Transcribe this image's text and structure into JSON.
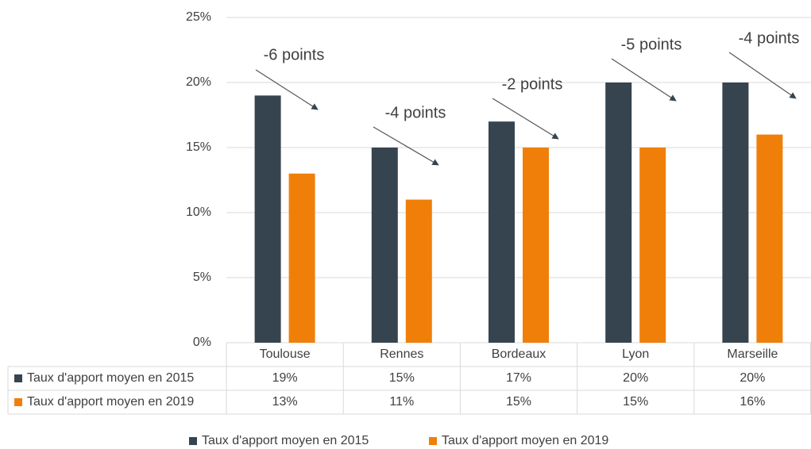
{
  "chart_data": {
    "type": "bar",
    "categories": [
      "Toulouse",
      "Rennes",
      "Bordeaux",
      "Lyon",
      "Marseille"
    ],
    "series": [
      {
        "name": "Taux d'apport moyen en 2015",
        "color": "#36444f",
        "values": [
          19,
          15,
          17,
          20,
          20
        ],
        "value_labels": [
          "19%",
          "15%",
          "17%",
          "20%",
          "20%"
        ]
      },
      {
        "name": "Taux d'apport moyen en 2019",
        "color": "#f07f09",
        "values": [
          13,
          11,
          15,
          15,
          16
        ],
        "value_labels": [
          "13%",
          "11%",
          "15%",
          "15%",
          "16%"
        ]
      }
    ],
    "ylim": [
      0,
      25
    ],
    "yticks": [
      {
        "value": 0,
        "label": "0%"
      },
      {
        "value": 5,
        "label": "5%"
      },
      {
        "value": 10,
        "label": "10%"
      },
      {
        "value": 15,
        "label": "15%"
      },
      {
        "value": 20,
        "label": "20%"
      },
      {
        "value": 25,
        "label": "25%"
      }
    ],
    "grid": true,
    "annotations": [
      "-6 points",
      "-4 points",
      "-2 points",
      "-5 points",
      "-4 points"
    ]
  }
}
